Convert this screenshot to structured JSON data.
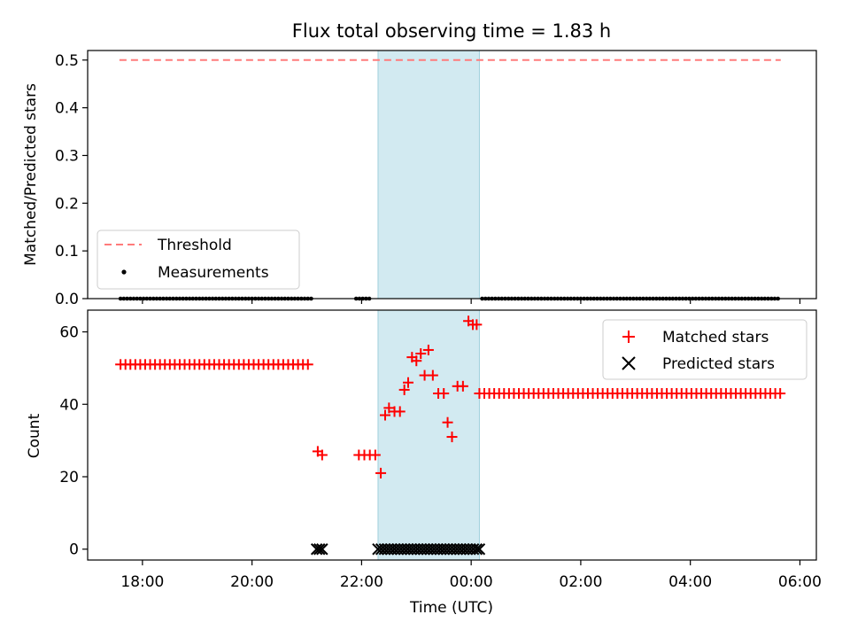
{
  "chart_data": {
    "type": "scatter",
    "title": "Flux total observing time = 1.83 h",
    "xlabel": "Time (UTC)",
    "x_unit": "hours since 00:00 UTC (negative = previous evening)",
    "xlim": [
      -7.0,
      6.3
    ],
    "x_ticks": [
      {
        "value": -6,
        "label": "18:00"
      },
      {
        "value": -4,
        "label": "20:00"
      },
      {
        "value": -2,
        "label": "22:00"
      },
      {
        "value": 0,
        "label": "00:00"
      },
      {
        "value": 2,
        "label": "02:00"
      },
      {
        "value": 4,
        "label": "04:00"
      },
      {
        "value": 6,
        "label": "06:00"
      }
    ],
    "highlight_span": {
      "from": -1.7,
      "to": 0.15,
      "color": "#add8e6"
    },
    "top_panel": {
      "ylabel": "Matched/Predicted stars",
      "ylim": [
        0.0,
        0.52
      ],
      "y_ticks": [
        "0.0",
        "0.1",
        "0.2",
        "0.3",
        "0.4",
        "0.5"
      ],
      "series": [
        {
          "name": "Threshold",
          "kind": "dashed-line",
          "color": "#ff7b7b",
          "y": 0.5,
          "x_range": [
            -6.42,
            5.65
          ]
        },
        {
          "name": "Measurements",
          "kind": "dot",
          "color": "#000000",
          "segments": [
            {
              "x_from": -6.4,
              "x_to": -2.9,
              "y": 0
            },
            {
              "x_from": -2.1,
              "x_to": -1.85,
              "y": 0
            },
            {
              "x_from": 0.2,
              "x_to": 5.65,
              "y": 0
            }
          ]
        }
      ],
      "legend": {
        "position": "lower-left",
        "entries": [
          "Threshold",
          "Measurements"
        ]
      }
    },
    "bottom_panel": {
      "ylabel": "Count",
      "ylim": [
        -3,
        66
      ],
      "y_ticks": [
        "0",
        "20",
        "40",
        "60"
      ],
      "series": [
        {
          "name": "Matched stars",
          "marker": "+",
          "color": "#ff0000",
          "segments": [
            {
              "x_from": -6.4,
              "x_to": -2.9,
              "y": 51
            },
            {
              "x_from": 0.15,
              "x_to": 5.65,
              "y": 43
            }
          ],
          "points": [
            [
              -2.8,
              27
            ],
            [
              -2.72,
              26
            ],
            [
              -2.05,
              26
            ],
            [
              -1.95,
              26
            ],
            [
              -1.85,
              26
            ],
            [
              -1.75,
              26
            ],
            [
              -1.65,
              21
            ],
            [
              -1.57,
              37
            ],
            [
              -1.5,
              39
            ],
            [
              -1.4,
              38
            ],
            [
              -1.3,
              38
            ],
            [
              -1.22,
              44
            ],
            [
              -1.15,
              46
            ],
            [
              -1.08,
              53
            ],
            [
              -1.0,
              52
            ],
            [
              -0.92,
              54
            ],
            [
              -0.85,
              48
            ],
            [
              -0.78,
              55
            ],
            [
              -0.7,
              48
            ],
            [
              -0.6,
              43
            ],
            [
              -0.5,
              43
            ],
            [
              -0.43,
              35
            ],
            [
              -0.35,
              31
            ],
            [
              -0.25,
              45
            ],
            [
              -0.15,
              45
            ],
            [
              -0.05,
              63
            ],
            [
              0.03,
              62
            ],
            [
              0.1,
              62
            ]
          ]
        },
        {
          "name": "Predicted stars",
          "marker": "x",
          "color": "#000000",
          "points_y": 0,
          "x_values": [
            -2.82,
            -2.77,
            -2.72,
            -1.7,
            -1.64,
            -1.58,
            -1.52,
            -1.46,
            -1.4,
            -1.34,
            -1.28,
            -1.22,
            -1.16,
            -1.1,
            -1.04,
            -0.98,
            -0.92,
            -0.86,
            -0.8,
            -0.74,
            -0.68,
            -0.62,
            -0.56,
            -0.5,
            -0.44,
            -0.38,
            -0.32,
            -0.26,
            -0.2,
            -0.14,
            -0.08,
            -0.02,
            0.04,
            0.1,
            0.15
          ]
        }
      ],
      "legend": {
        "position": "upper-right",
        "entries": [
          "Matched stars",
          "Predicted stars"
        ]
      }
    }
  }
}
